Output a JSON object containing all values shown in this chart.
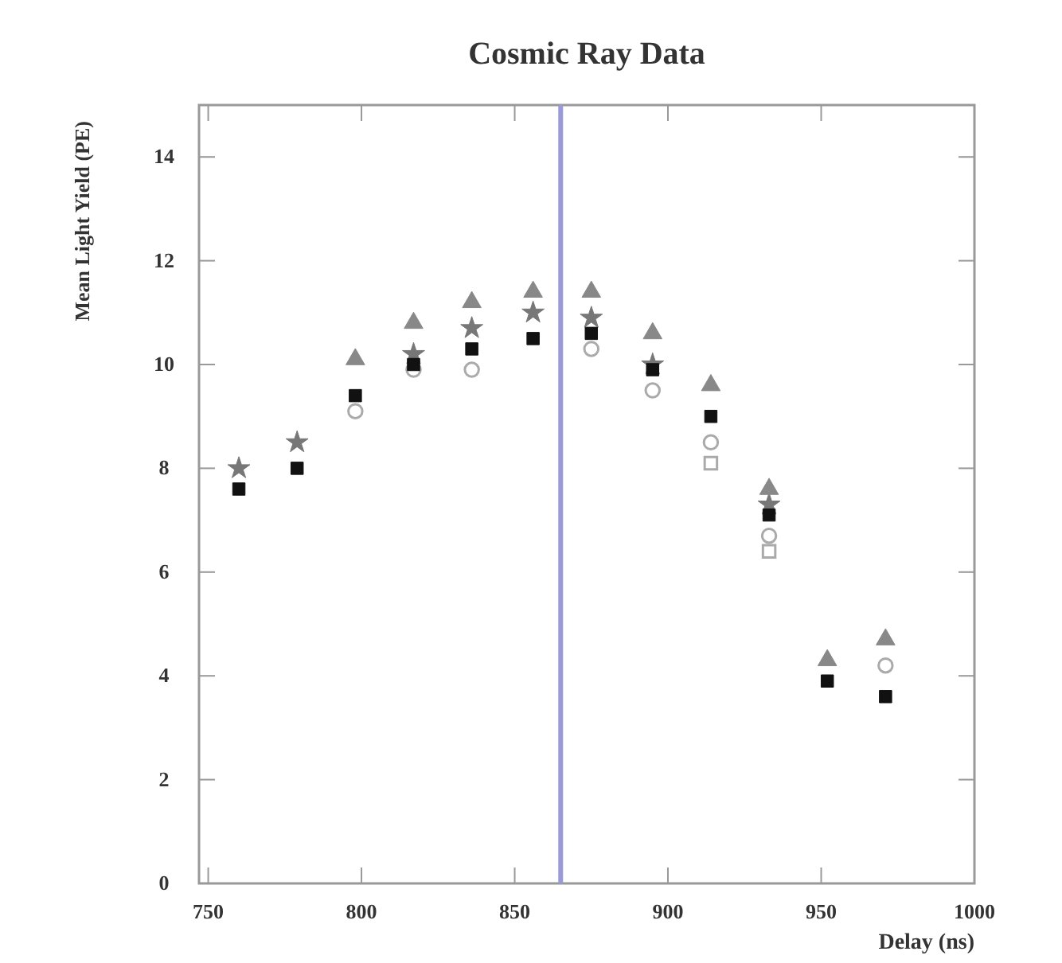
{
  "chart_data": {
    "type": "scatter",
    "title": "Cosmic Ray Data",
    "xlabel": "Delay (ns)",
    "ylabel": "Mean Light Yield (PE)",
    "x": [
      760,
      779,
      798,
      817,
      836,
      856,
      875,
      895,
      914,
      933,
      952,
      971
    ],
    "xlim": [
      747,
      1000
    ],
    "xticks": [
      750,
      800,
      850,
      900,
      950,
      1000
    ],
    "ylim": [
      0,
      15
    ],
    "yticks": [
      0,
      2,
      4,
      6,
      8,
      10,
      12,
      14
    ],
    "grid": false,
    "series": [
      {
        "color": "#111111",
        "marker": "square",
        "values": [
          7.6,
          8.0,
          9.4,
          10.0,
          10.3,
          10.5,
          10.6,
          9.9,
          9.0,
          7.1,
          3.9,
          3.6
        ]
      },
      {
        "color": "#888888",
        "marker": "triangle",
        "values": [
          null,
          null,
          10.1,
          10.8,
          11.2,
          11.4,
          11.4,
          10.6,
          9.6,
          7.6,
          4.3,
          4.7
        ]
      },
      {
        "color": "#777777",
        "marker": "star",
        "values": [
          8.0,
          8.5,
          null,
          10.2,
          10.7,
          11.0,
          10.9,
          10.0,
          null,
          7.3,
          null,
          null
        ]
      },
      {
        "color": "#aaaaaa",
        "marker": "circle",
        "values": [
          null,
          null,
          9.1,
          9.9,
          9.9,
          null,
          10.3,
          9.5,
          8.5,
          6.7,
          null,
          4.2
        ]
      },
      {
        "color": "#aaaaaa",
        "marker": "square",
        "values": [
          null,
          null,
          null,
          null,
          null,
          null,
          null,
          null,
          8.1,
          6.4,
          null,
          null
        ]
      }
    ],
    "ref_lines": [
      {
        "axis": "x",
        "value": 865,
        "color": "#9a9ad8"
      }
    ]
  }
}
